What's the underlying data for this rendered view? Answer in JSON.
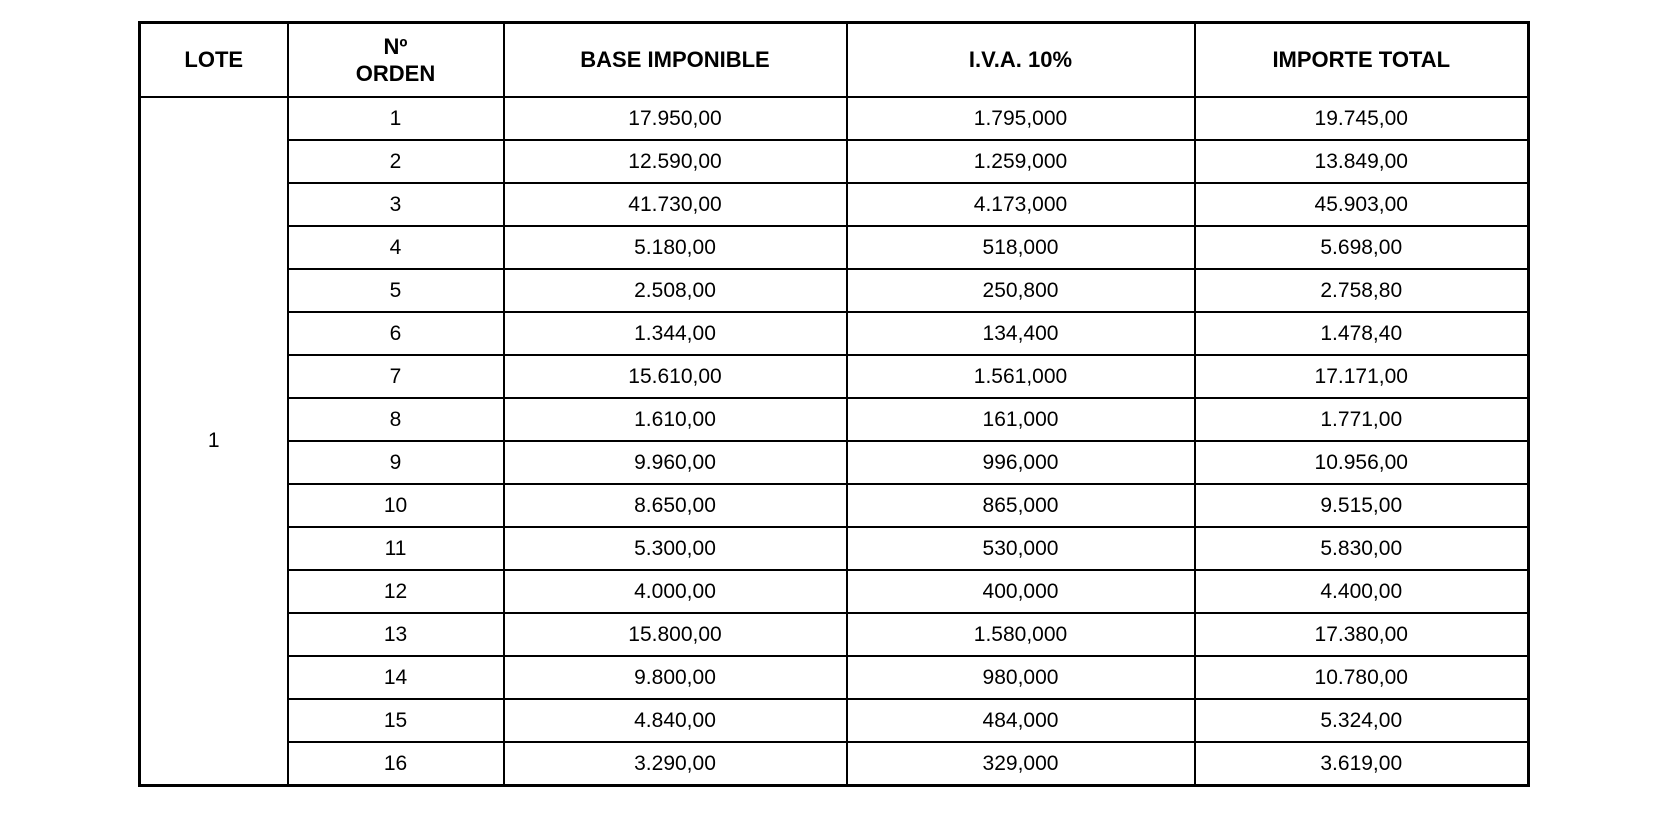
{
  "page": {
    "background_color": "#ffffff",
    "border_color": "#000000",
    "text_color": "#000000"
  },
  "table": {
    "headers": {
      "lote": "LOTE",
      "orden": "Nº\nORDEN",
      "base": "BASE IMPONIBLE",
      "iva": "I.V.A. 10%",
      "total": "IMPORTE TOTAL"
    },
    "lote_value": "1",
    "rows": [
      {
        "orden": "1",
        "base": "17.950,00",
        "iva": "1.795,000",
        "total": "19.745,00"
      },
      {
        "orden": "2",
        "base": "12.590,00",
        "iva": "1.259,000",
        "total": "13.849,00"
      },
      {
        "orden": "3",
        "base": "41.730,00",
        "iva": "4.173,000",
        "total": "45.903,00"
      },
      {
        "orden": "4",
        "base": "5.180,00",
        "iva": "518,000",
        "total": "5.698,00"
      },
      {
        "orden": "5",
        "base": "2.508,00",
        "iva": "250,800",
        "total": "2.758,80"
      },
      {
        "orden": "6",
        "base": "1.344,00",
        "iva": "134,400",
        "total": "1.478,40"
      },
      {
        "orden": "7",
        "base": "15.610,00",
        "iva": "1.561,000",
        "total": "17.171,00"
      },
      {
        "orden": "8",
        "base": "1.610,00",
        "iva": "161,000",
        "total": "1.771,00"
      },
      {
        "orden": "9",
        "base": "9.960,00",
        "iva": "996,000",
        "total": "10.956,00"
      },
      {
        "orden": "10",
        "base": "8.650,00",
        "iva": "865,000",
        "total": "9.515,00"
      },
      {
        "orden": "11",
        "base": "5.300,00",
        "iva": "530,000",
        "total": "5.830,00"
      },
      {
        "orden": "12",
        "base": "4.000,00",
        "iva": "400,000",
        "total": "4.400,00"
      },
      {
        "orden": "13",
        "base": "15.800,00",
        "iva": "1.580,000",
        "total": "17.380,00"
      },
      {
        "orden": "14",
        "base": "9.800,00",
        "iva": "980,000",
        "total": "10.780,00"
      },
      {
        "orden": "15",
        "base": "4.840,00",
        "iva": "484,000",
        "total": "5.324,00"
      },
      {
        "orden": "16",
        "base": "3.290,00",
        "iva": "329,000",
        "total": "3.619,00"
      }
    ]
  },
  "chart_data": {
    "type": "table",
    "title": "",
    "columns": [
      "LOTE",
      "Nº ORDEN",
      "BASE IMPONIBLE",
      "I.V.A. 10%",
      "IMPORTE TOTAL"
    ],
    "lote": "1",
    "values": [
      [
        "1",
        "17.950,00",
        "1.795,000",
        "19.745,00"
      ],
      [
        "2",
        "12.590,00",
        "1.259,000",
        "13.849,00"
      ],
      [
        "3",
        "41.730,00",
        "4.173,000",
        "45.903,00"
      ],
      [
        "4",
        "5.180,00",
        "518,000",
        "5.698,00"
      ],
      [
        "5",
        "2.508,00",
        "250,800",
        "2.758,80"
      ],
      [
        "6",
        "1.344,00",
        "134,400",
        "1.478,40"
      ],
      [
        "7",
        "15.610,00",
        "1.561,000",
        "17.171,00"
      ],
      [
        "8",
        "1.610,00",
        "161,000",
        "1.771,00"
      ],
      [
        "9",
        "9.960,00",
        "996,000",
        "10.956,00"
      ],
      [
        "10",
        "8.650,00",
        "865,000",
        "9.515,00"
      ],
      [
        "11",
        "5.300,00",
        "530,000",
        "5.830,00"
      ],
      [
        "12",
        "4.000,00",
        "400,000",
        "4.400,00"
      ],
      [
        "13",
        "15.800,00",
        "1.580,000",
        "17.380,00"
      ],
      [
        "14",
        "9.800,00",
        "980,000",
        "10.780,00"
      ],
      [
        "15",
        "4.840,00",
        "484,000",
        "5.324,00"
      ],
      [
        "16",
        "3.290,00",
        "329,000",
        "3.619,00"
      ]
    ]
  }
}
